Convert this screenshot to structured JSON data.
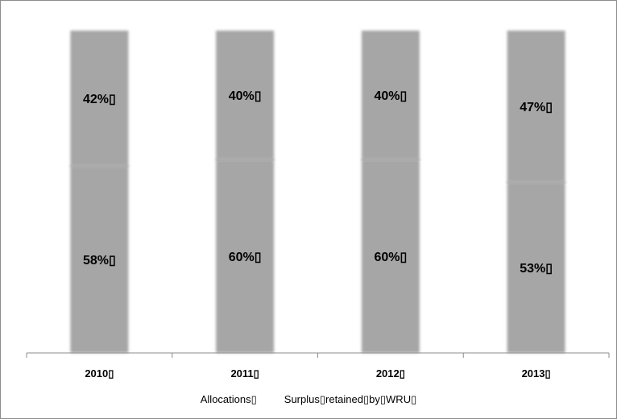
{
  "chart_data": {
    "type": "bar",
    "stacked": true,
    "categories": [
      "2010▯",
      "2011▯",
      "2012▯",
      "2013▯"
    ],
    "series": [
      {
        "name": "Allocations▯",
        "values": [
          58,
          60,
          60,
          53
        ],
        "labels": [
          "58%▯",
          "60%▯",
          "60%▯",
          "53%▯"
        ]
      },
      {
        "name": "Surplus▯retained▯by▯WRU▯",
        "values": [
          42,
          40,
          40,
          47
        ],
        "labels": [
          "42%▯",
          "40%▯",
          "40%▯",
          "47%▯"
        ]
      }
    ],
    "ylim": [
      0,
      100
    ],
    "grid": false,
    "legend_position": "bottom",
    "colors": {
      "bar": "#a6a6a6",
      "boundary": "#9a9a9a",
      "axis": "#8c8c8c"
    }
  }
}
